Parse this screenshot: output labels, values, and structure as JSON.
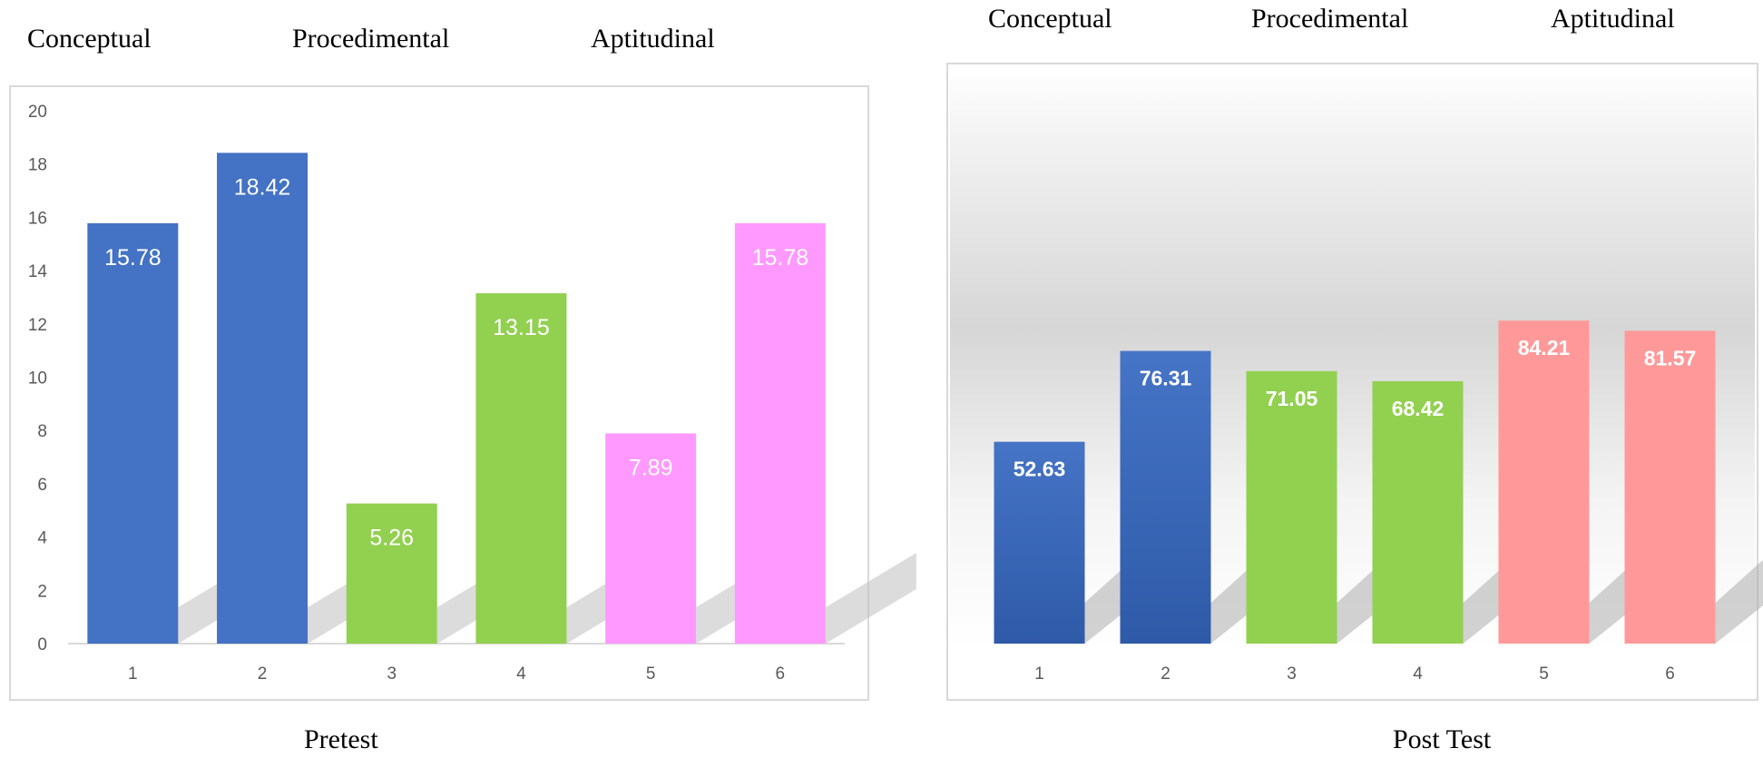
{
  "left_group_labels": [
    "Conceptual",
    "Procedimental",
    "Aptitudinal"
  ],
  "right_group_labels": [
    "Conceptual",
    "Procedimental",
    "Aptitudinal"
  ],
  "chart_data": [
    {
      "type": "bar",
      "caption": "Pretest",
      "categories": [
        "1",
        "2",
        "3",
        "4",
        "5",
        "6"
      ],
      "values": [
        15.78,
        18.42,
        5.26,
        13.15,
        7.89,
        15.78
      ],
      "data_labels": [
        "15.78",
        "18.42",
        "5.26",
        "13.15",
        "7.89",
        "15.78"
      ],
      "colors": [
        "#4472c4",
        "#4472c4",
        "#92d050",
        "#92d050",
        "#ff99ff",
        "#ff99ff"
      ],
      "ylim": [
        0,
        20
      ],
      "yticks": [
        0,
        2,
        4,
        6,
        8,
        10,
        12,
        14,
        16,
        18,
        20
      ],
      "grid": false
    },
    {
      "type": "bar",
      "caption": "Post Test",
      "categories": [
        "1",
        "2",
        "3",
        "4",
        "5",
        "6"
      ],
      "values": [
        52.63,
        76.31,
        71.05,
        68.42,
        84.21,
        81.57
      ],
      "data_labels": [
        "52.63",
        "76.31",
        "71.05",
        "68.42",
        "84.21",
        "81.57"
      ],
      "colors": [
        "#4472c4",
        "#4472c4",
        "#92d050",
        "#92d050",
        "#ff9999",
        "#ff9999"
      ],
      "y_axis_shown": false,
      "grid": false
    }
  ]
}
